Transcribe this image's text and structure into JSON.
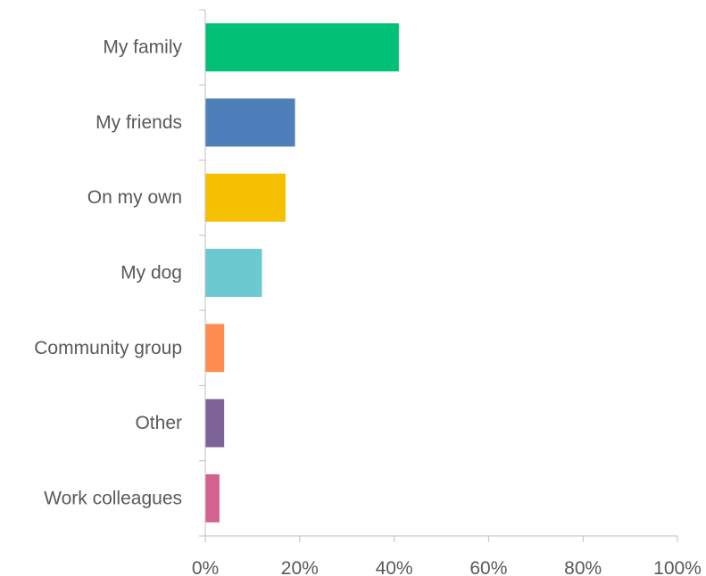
{
  "chart_data": {
    "type": "bar",
    "orientation": "horizontal",
    "categories": [
      "My family",
      "My friends",
      "On my own",
      "My dog",
      "Community group",
      "Other",
      "Work colleagues"
    ],
    "values": [
      41,
      19,
      17,
      12,
      4,
      4,
      3
    ],
    "colors": [
      "#00c176",
      "#4f7fba",
      "#f5c000",
      "#6cc9cf",
      "#fd8c4e",
      "#7e6398",
      "#d4618f"
    ],
    "x_ticks": [
      "0%",
      "20%",
      "40%",
      "60%",
      "80%",
      "100%"
    ],
    "xlim": [
      0,
      100
    ],
    "value_unit": "%",
    "grid": false,
    "legend": "none",
    "title": "",
    "xlabel": "",
    "ylabel": ""
  }
}
